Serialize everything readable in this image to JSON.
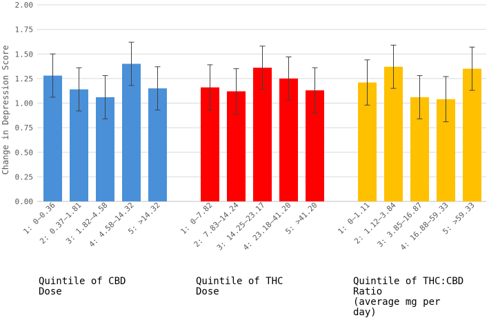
{
  "chart_data": {
    "type": "bar",
    "ylabel": "Change in Depression Score",
    "ylim": [
      0,
      2.0
    ],
    "y_ticks": [
      "0.00",
      "0.25",
      "0.50",
      "0.75",
      "1.00",
      "1.25",
      "1.50",
      "1.75",
      "2.00"
    ],
    "grid": true,
    "legend": "none",
    "groups": [
      {
        "label": [
          "Quintile of CBD",
          "Dose"
        ],
        "color": "#4A90D9",
        "categories": [
          "1: 0–0.36",
          "2: 0.37–1.81",
          "3: 1.82–4.58",
          "4: 4.58–14.32",
          "5: >14.32"
        ],
        "values": [
          1.28,
          1.14,
          1.06,
          1.4,
          1.15
        ],
        "error": [
          0.22,
          0.22,
          0.22,
          0.22,
          0.22
        ]
      },
      {
        "label": [
          "Quintile of THC",
          "Dose"
        ],
        "color": "#FF0000",
        "categories": [
          "1: 0–7.82",
          "2: 7.83–14.24",
          "3: 14.25–23.17",
          "4: 23.18–41.20",
          "5: >41.20"
        ],
        "values": [
          1.16,
          1.12,
          1.36,
          1.25,
          1.13
        ],
        "error": [
          0.23,
          0.23,
          0.22,
          0.22,
          0.23
        ]
      },
      {
        "label": [
          "Quintile of THC:CBD",
          "Ratio",
          "(average mg per",
          "day)"
        ],
        "color": "#FFC000",
        "categories": [
          "1: 0–1.11",
          "2: 1.12–3.84",
          "3: 3.85–16.87",
          "4: 16.88–59.33",
          "5: >59.33"
        ],
        "values": [
          1.21,
          1.37,
          1.06,
          1.04,
          1.35
        ],
        "error": [
          0.23,
          0.22,
          0.22,
          0.23,
          0.22
        ]
      }
    ]
  }
}
